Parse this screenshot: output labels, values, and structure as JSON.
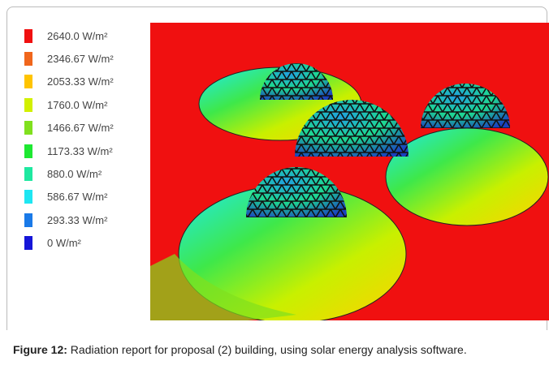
{
  "legend": {
    "items": [
      {
        "label": "2640.0 W/m²",
        "color": "#f01010"
      },
      {
        "label": "2346.67 W/m²",
        "color": "#f0661c"
      },
      {
        "label": "2053.33 W/m²",
        "color": "#ffc400"
      },
      {
        "label": "1760.0 W/m²",
        "color": "#d2f000"
      },
      {
        "label": "1466.67 W/m²",
        "color": "#80e01e"
      },
      {
        "label": "1173.33 W/m²",
        "color": "#1ee832"
      },
      {
        "label": "880.0 W/m²",
        "color": "#1ee8a0"
      },
      {
        "label": "586.67 W/m²",
        "color": "#1ee6f2"
      },
      {
        "label": "293.33 W/m²",
        "color": "#1a7ae8"
      },
      {
        "label": "0 W/m²",
        "color": "#1616d8"
      }
    ]
  },
  "caption": {
    "label": "Figure 12:",
    "text": " Radiation report for proposal (2) building, using solar energy analysis software."
  }
}
